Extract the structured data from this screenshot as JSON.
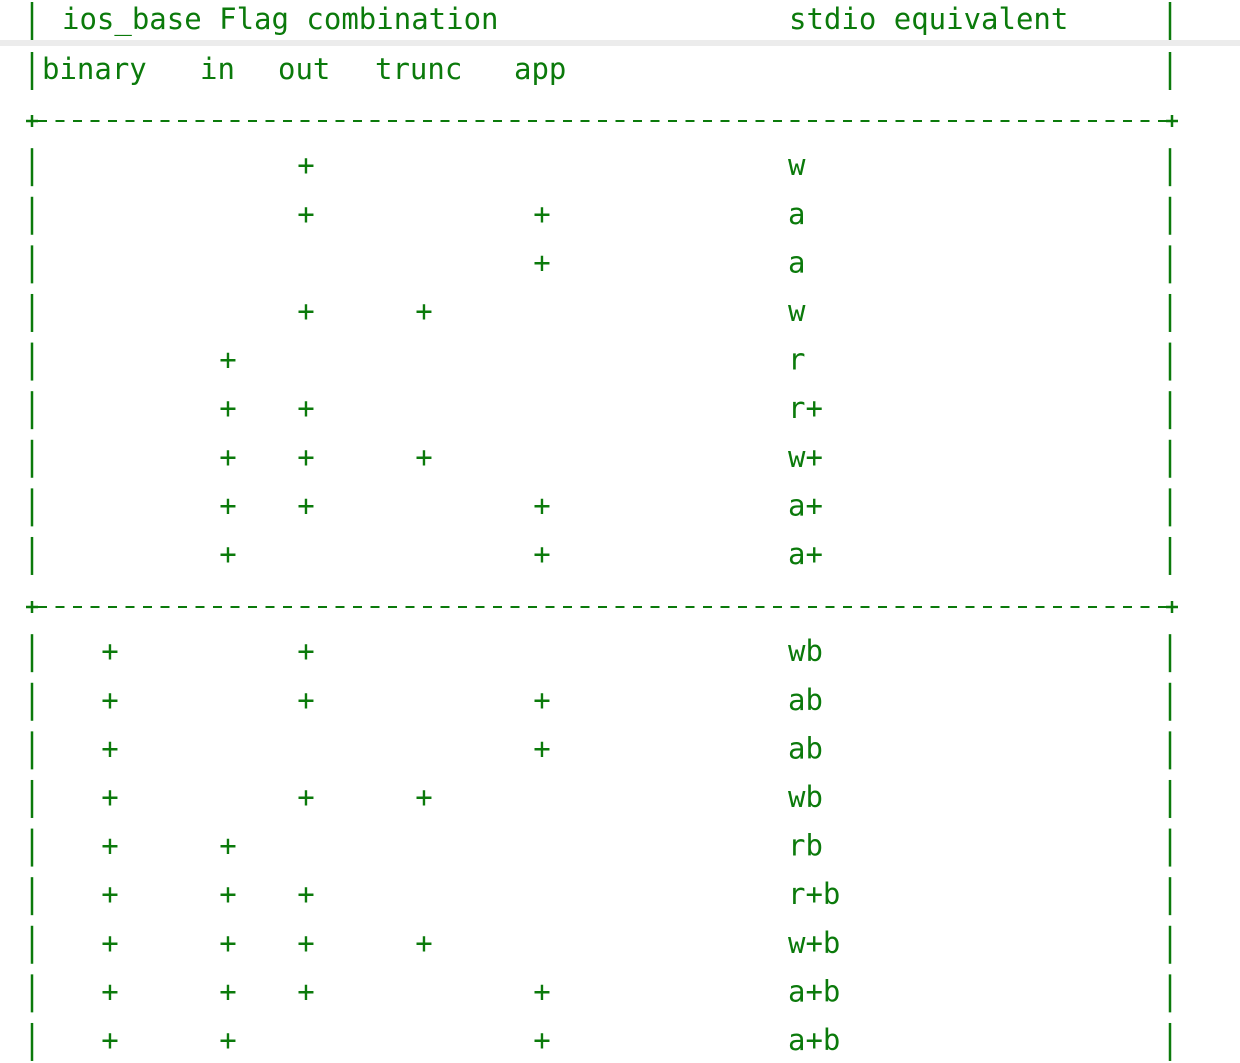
{
  "header": {
    "title": "ios_base Flag combination",
    "stdio": "stdio equivalent",
    "columns": [
      "binary",
      "in",
      "out",
      "trunc",
      "app"
    ]
  },
  "groups": [
    {
      "rows": [
        {
          "flags": [
            null,
            null,
            "+",
            null,
            null
          ],
          "mode": "w"
        },
        {
          "flags": [
            null,
            null,
            "+",
            null,
            "+"
          ],
          "mode": "a"
        },
        {
          "flags": [
            null,
            null,
            null,
            null,
            "+"
          ],
          "mode": "a"
        },
        {
          "flags": [
            null,
            null,
            "+",
            "+",
            null
          ],
          "mode": "w"
        },
        {
          "flags": [
            null,
            "+",
            null,
            null,
            null
          ],
          "mode": "r"
        },
        {
          "flags": [
            null,
            "+",
            "+",
            null,
            null
          ],
          "mode": "r+"
        },
        {
          "flags": [
            null,
            "+",
            "+",
            "+",
            null
          ],
          "mode": "w+"
        },
        {
          "flags": [
            null,
            "+",
            "+",
            null,
            "+"
          ],
          "mode": "a+"
        },
        {
          "flags": [
            null,
            "+",
            null,
            null,
            "+"
          ],
          "mode": "a+"
        }
      ]
    },
    {
      "rows": [
        {
          "flags": [
            "+",
            null,
            "+",
            null,
            null
          ],
          "mode": "wb"
        },
        {
          "flags": [
            "+",
            null,
            "+",
            null,
            "+"
          ],
          "mode": "ab"
        },
        {
          "flags": [
            "+",
            null,
            null,
            null,
            "+"
          ],
          "mode": "ab"
        },
        {
          "flags": [
            "+",
            null,
            "+",
            "+",
            null
          ],
          "mode": "wb"
        },
        {
          "flags": [
            "+",
            "+",
            null,
            null,
            null
          ],
          "mode": "rb"
        },
        {
          "flags": [
            "+",
            "+",
            "+",
            null,
            null
          ],
          "mode": "r+b"
        },
        {
          "flags": [
            "+",
            "+",
            "+",
            "+",
            null
          ],
          "mode": "w+b"
        },
        {
          "flags": [
            "+",
            "+",
            "+",
            null,
            "+"
          ],
          "mode": "a+b"
        },
        {
          "flags": [
            "+",
            "+",
            null,
            null,
            "+"
          ],
          "mode": "a+b"
        }
      ]
    }
  ]
}
